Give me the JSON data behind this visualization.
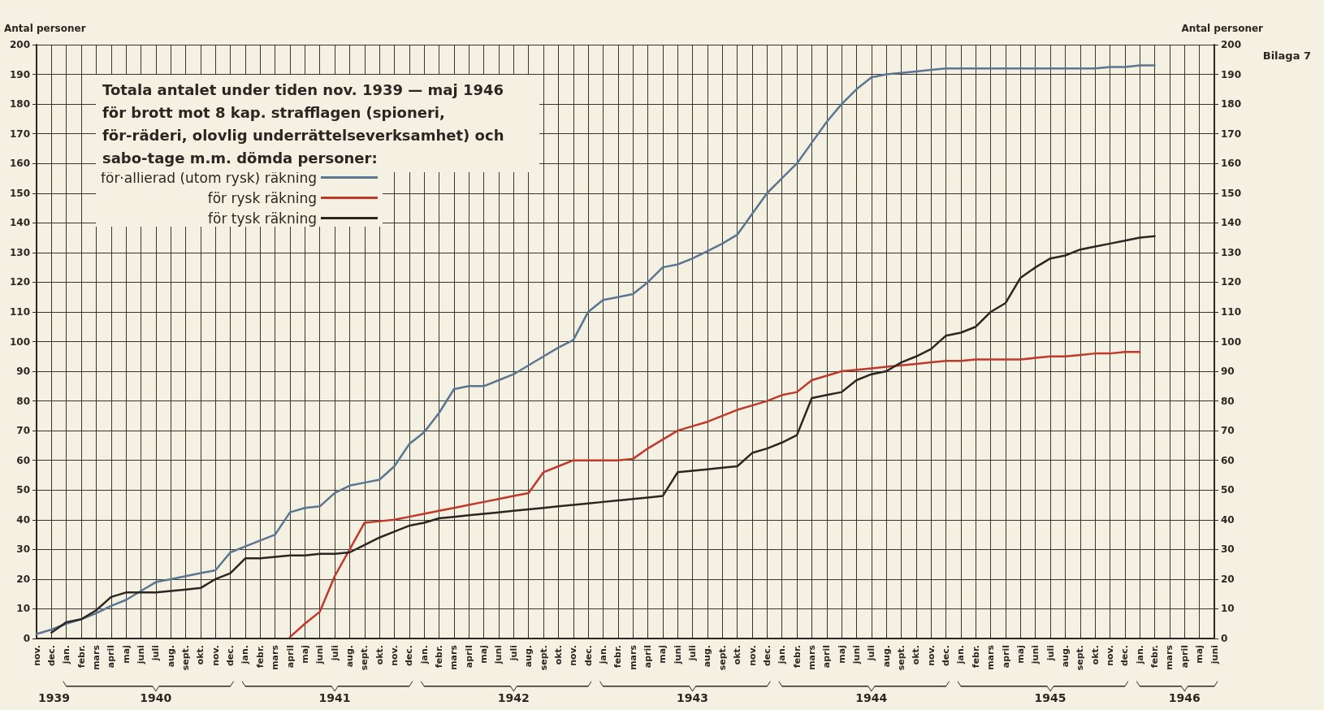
{
  "chart_data": {
    "type": "line",
    "title": "Totala antalet under tiden nov. 1939 — maj 1946 för brott mot 8 kap. strafflagen (spioneri, för-räderi, olovlig underrättelseverksamhet) och sabo-tage m.m. dömda personer:",
    "ylabel": "Antal personer",
    "y2label": "Antal personer",
    "categories": [
      "nov.",
      "dec.",
      "jan.",
      "febr.",
      "mars",
      "april",
      "maj",
      "juni",
      "juli",
      "aug.",
      "sept.",
      "okt.",
      "nov.",
      "dec.",
      "jan.",
      "febr.",
      "mars",
      "april",
      "maj",
      "juni",
      "juli",
      "aug.",
      "sept.",
      "okt.",
      "nov.",
      "dec.",
      "jan.",
      "febr.",
      "mars",
      "april",
      "maj",
      "juni",
      "juli",
      "aug.",
      "sept.",
      "okt.",
      "nov.",
      "dec.",
      "jan.",
      "febr.",
      "mars",
      "april",
      "maj",
      "juni",
      "juli",
      "aug.",
      "sept.",
      "okt.",
      "nov.",
      "dec.",
      "jan.",
      "febr.",
      "mars",
      "april",
      "maj",
      "juni",
      "juli",
      "aug.",
      "sept.",
      "okt.",
      "nov.",
      "dec.",
      "jan.",
      "febr.",
      "mars",
      "april",
      "maj",
      "juni",
      "juli",
      "aug.",
      "sept.",
      "okt.",
      "nov.",
      "dec.",
      "jan.",
      "febr.",
      "mars",
      "april",
      "maj",
      "juni"
    ],
    "series": [
      {
        "name": "för·allierad (utom rysk) räkning",
        "color": "#5a7690",
        "values": [
          1.5,
          3,
          5,
          6.5,
          8.5,
          11,
          13,
          16,
          19,
          20,
          21,
          22,
          23,
          29,
          31,
          33,
          35,
          42.5,
          44,
          44.5,
          49,
          51.5,
          52.5,
          53.5,
          58,
          65.5,
          69.5,
          76,
          84,
          85,
          85,
          87,
          89,
          92,
          95,
          98,
          100.5,
          110,
          114,
          115,
          116,
          120,
          125,
          126,
          128,
          130.5,
          133,
          136,
          143,
          150,
          155,
          160,
          167,
          174,
          180,
          185,
          189,
          190,
          190.5,
          191,
          191.5,
          192,
          192,
          192,
          192,
          192,
          192,
          192,
          192,
          192,
          192,
          192,
          192.5,
          192.5,
          193,
          193,
          null,
          null,
          null,
          null
        ]
      },
      {
        "name": "för rysk räkning",
        "color": "#c0392b",
        "values": [
          null,
          null,
          null,
          null,
          null,
          null,
          null,
          null,
          null,
          null,
          null,
          null,
          null,
          null,
          null,
          null,
          null,
          0.5,
          5,
          9,
          21,
          30,
          39,
          39.5,
          40,
          41,
          42,
          43,
          44,
          45,
          46,
          47,
          48,
          49,
          56,
          58,
          60,
          60,
          60,
          60,
          60.5,
          64,
          67,
          70,
          71.5,
          73,
          75,
          77,
          78.5,
          80,
          82,
          83,
          87,
          88.5,
          90,
          90.5,
          91,
          91.5,
          92,
          92.5,
          93,
          93.5,
          93.5,
          94,
          94,
          94,
          94,
          94.5,
          95,
          95,
          95.5,
          96,
          96,
          96.5,
          96.5,
          null,
          null,
          null,
          null,
          null
        ]
      },
      {
        "name": "för tysk räkning",
        "color": "#2b2622",
        "values": [
          null,
          2,
          5.5,
          6.5,
          9.5,
          14,
          15.5,
          15.5,
          15.5,
          16,
          16.5,
          17,
          20,
          22,
          27,
          27,
          27.5,
          28,
          28,
          28.5,
          28.5,
          29,
          31.5,
          34,
          36,
          38,
          39,
          40.5,
          41,
          41.5,
          42,
          42.5,
          43,
          43.5,
          44,
          44.5,
          45,
          45.5,
          46,
          46.5,
          47,
          47.5,
          48,
          56,
          56.5,
          57,
          57.5,
          58,
          62.5,
          64,
          66,
          68.5,
          81,
          82,
          83,
          87,
          89,
          90,
          93,
          95,
          97.5,
          102,
          103,
          105,
          110,
          113,
          121.5,
          125,
          128,
          129,
          131,
          132,
          133,
          134,
          135,
          135.5,
          null,
          null,
          null,
          null
        ]
      }
    ],
    "ylim": [
      0,
      200
    ],
    "yticks": [
      0,
      10,
      20,
      30,
      40,
      50,
      60,
      70,
      80,
      90,
      100,
      110,
      120,
      130,
      140,
      150,
      160,
      170,
      180,
      190,
      200
    ],
    "y2lim": [
      0,
      200
    ],
    "y2ticks": [
      0,
      10,
      20,
      30,
      40,
      50,
      60,
      70,
      80,
      90,
      100,
      110,
      120,
      130,
      140,
      150,
      160,
      170,
      180,
      190,
      200
    ],
    "annotations": [
      "Bilaga 7",
      "1939",
      "1940",
      "1941",
      "1942",
      "1943",
      "1944",
      "1945",
      "1946"
    ],
    "grid": true,
    "legend": "top left",
    "marker": "none",
    "line_style": "solid"
  }
}
